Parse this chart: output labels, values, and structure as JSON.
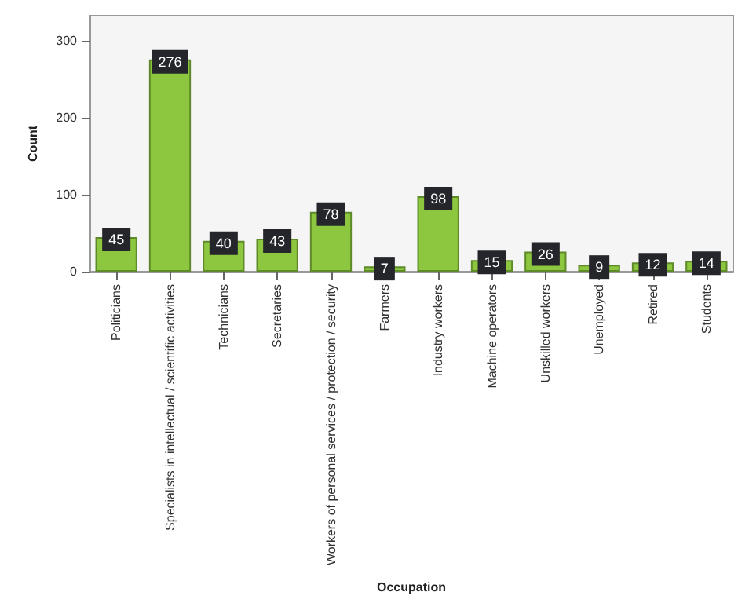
{
  "chart_data": {
    "type": "bar",
    "xlabel": "Occupation",
    "ylabel": "Count",
    "categories": [
      "Politicians",
      "Specialists in intellectual / scientific activities",
      "Technicians",
      "Secretaries",
      "Workers of personal services / protection / security",
      "Farmers",
      "Industry workers",
      "Machine operators",
      "Unskilled workers",
      "Unemployed",
      "Retired",
      "Students"
    ],
    "values": [
      45,
      276,
      40,
      43,
      78,
      7,
      98,
      15,
      26,
      9,
      12,
      14
    ],
    "color": "#8dc63f",
    "ylim": [
      0,
      333
    ],
    "yticks": [
      0,
      100,
      200,
      300
    ],
    "grid": false,
    "data_labels": true
  }
}
